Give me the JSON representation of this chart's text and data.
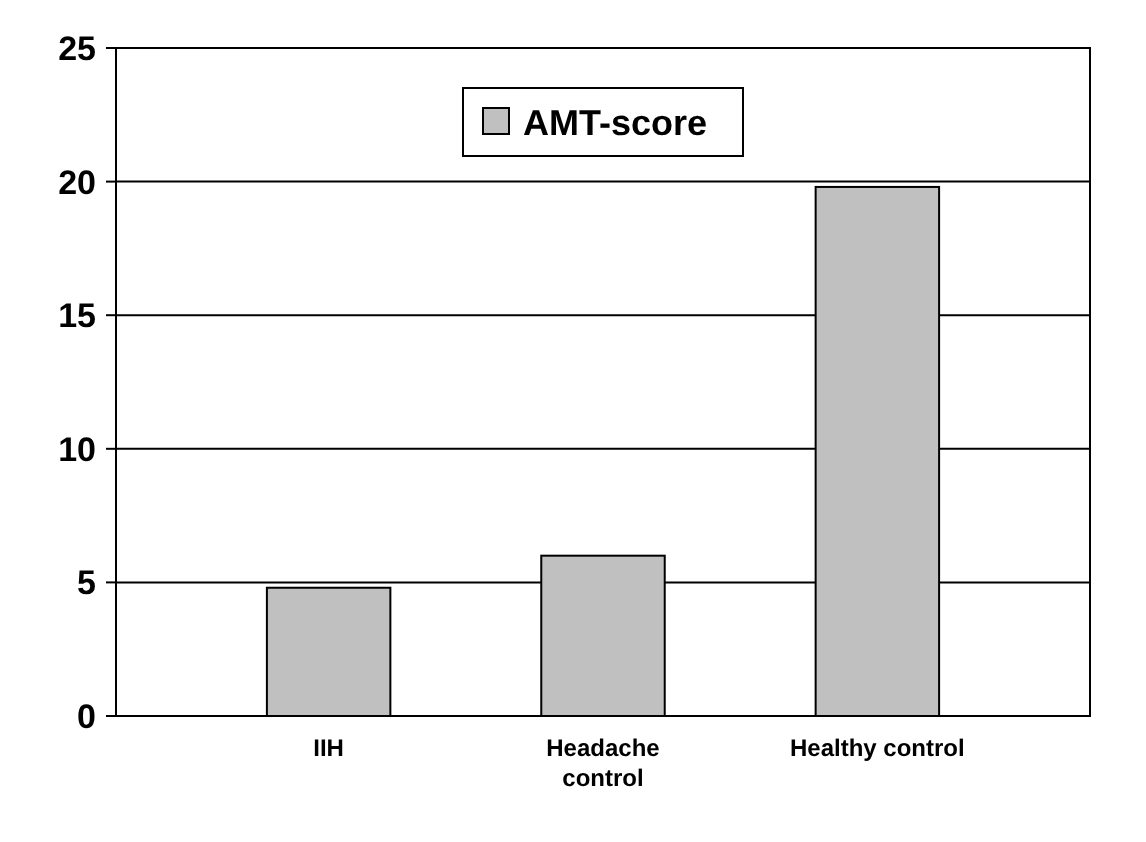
{
  "chart_data": {
    "type": "bar",
    "categories": [
      "IIH",
      "Headache\ncontrol",
      "Healthy control"
    ],
    "series": [
      {
        "name": "AMT-score",
        "color": "#c0c0c0",
        "values": [
          4.8,
          6,
          19.8
        ]
      }
    ],
    "ylim": [
      0,
      25
    ],
    "yticks": [
      0,
      5,
      10,
      15,
      20,
      25
    ],
    "grid": "y",
    "legend": "top"
  }
}
